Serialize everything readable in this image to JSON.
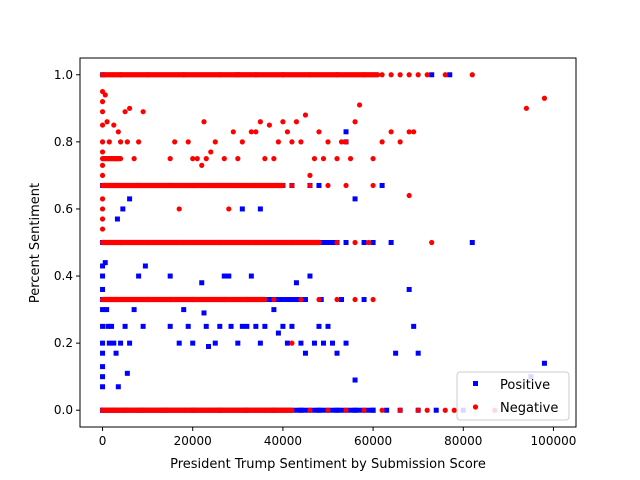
{
  "chart_data": {
    "type": "scatter",
    "title": "",
    "xlabel": "President Trump Sentiment by Submission Score",
    "ylabel": "Percent Sentiment",
    "xlim": [
      -5000,
      105000
    ],
    "ylim": [
      -0.05,
      1.05
    ],
    "xticks": [
      0,
      20000,
      40000,
      60000,
      80000,
      100000
    ],
    "xtick_labels": [
      "0",
      "20000",
      "40000",
      "60000",
      "80000",
      "100000"
    ],
    "yticks": [
      0.0,
      0.2,
      0.4,
      0.6,
      0.8,
      1.0
    ],
    "ytick_labels": [
      "0.0",
      "0.2",
      "0.4",
      "0.6",
      "0.8",
      "1.0"
    ],
    "grid": false,
    "legend_position": "lower-right",
    "series": [
      {
        "name": "Positive",
        "color": "#0000ff",
        "marker": "square",
        "points": [
          [
            0,
            0.0
          ],
          [
            2000,
            0.0
          ],
          [
            5000,
            0.0
          ],
          [
            9000,
            0.0
          ],
          [
            14000,
            0.0
          ],
          [
            20000,
            0.0
          ],
          [
            26000,
            0.0
          ],
          [
            32000,
            0.0
          ],
          [
            38000,
            0.0
          ],
          [
            44000,
            0.0
          ],
          [
            48000,
            0.0
          ],
          [
            52000,
            0.0
          ],
          [
            56000,
            0.0
          ],
          [
            60000,
            0.0
          ],
          [
            63000,
            0.0
          ],
          [
            66000,
            0.0
          ],
          [
            70000,
            0.0
          ],
          [
            74000,
            0.0
          ],
          [
            80000,
            0.0
          ],
          [
            0,
            0.07
          ],
          [
            0,
            0.1
          ],
          [
            0,
            0.13
          ],
          [
            0,
            0.17
          ],
          [
            0,
            0.2
          ],
          [
            0,
            0.25
          ],
          [
            0,
            0.3
          ],
          [
            0,
            0.36
          ],
          [
            0,
            0.4
          ],
          [
            0,
            0.43
          ],
          [
            600,
            0.44
          ],
          [
            900,
            0.3
          ],
          [
            1200,
            0.25
          ],
          [
            1500,
            0.2
          ],
          [
            2000,
            0.25
          ],
          [
            2500,
            0.2
          ],
          [
            3000,
            0.17
          ],
          [
            3500,
            0.07
          ],
          [
            4000,
            0.2
          ],
          [
            5000,
            0.25
          ],
          [
            5500,
            0.11
          ],
          [
            6000,
            0.2
          ],
          [
            7000,
            0.3
          ],
          [
            8000,
            0.4
          ],
          [
            9000,
            0.25
          ],
          [
            3300,
            0.57
          ],
          [
            4500,
            0.6
          ],
          [
            6000,
            0.63
          ],
          [
            9500,
            0.43
          ],
          [
            15000,
            0.25
          ],
          [
            15000,
            0.4
          ],
          [
            17000,
            0.2
          ],
          [
            18000,
            0.3
          ],
          [
            19000,
            0.25
          ],
          [
            20000,
            0.2
          ],
          [
            22000,
            0.38
          ],
          [
            22500,
            0.29
          ],
          [
            23000,
            0.25
          ],
          [
            23500,
            0.19
          ],
          [
            25000,
            0.2
          ],
          [
            26000,
            0.25
          ],
          [
            27000,
            0.4
          ],
          [
            28000,
            0.4
          ],
          [
            28500,
            0.25
          ],
          [
            30000,
            0.2
          ],
          [
            31000,
            0.25
          ],
          [
            32000,
            0.25
          ],
          [
            33000,
            0.4
          ],
          [
            34000,
            0.25
          ],
          [
            35000,
            0.2
          ],
          [
            36000,
            0.25
          ],
          [
            37500,
            0.33
          ],
          [
            38000,
            0.3
          ],
          [
            39000,
            0.23
          ],
          [
            40000,
            0.25
          ],
          [
            41000,
            0.2
          ],
          [
            41500,
            0.33
          ],
          [
            42000,
            0.25
          ],
          [
            43000,
            0.38
          ],
          [
            44000,
            0.2
          ],
          [
            45000,
            0.17
          ],
          [
            46000,
            0.4
          ],
          [
            47000,
            0.2
          ],
          [
            48000,
            0.25
          ],
          [
            48500,
            0.33
          ],
          [
            49000,
            0.2
          ],
          [
            50000,
            0.25
          ],
          [
            51000,
            0.2
          ],
          [
            52000,
            0.17
          ],
          [
            53000,
            0.33
          ],
          [
            54000,
            0.2
          ],
          [
            56000,
            0.09
          ],
          [
            58000,
            0.33
          ],
          [
            65000,
            0.17
          ],
          [
            68000,
            0.36
          ],
          [
            69000,
            0.25
          ],
          [
            70000,
            0.17
          ],
          [
            95000,
            0.1
          ],
          [
            98000,
            0.14
          ],
          [
            12000,
            0.5
          ],
          [
            22000,
            0.5
          ],
          [
            30000,
            0.5
          ],
          [
            38000,
            0.5
          ],
          [
            46000,
            0.5
          ],
          [
            52000,
            0.5
          ],
          [
            54000,
            0.5
          ],
          [
            58000,
            0.5
          ],
          [
            60000,
            0.5
          ],
          [
            64000,
            0.5
          ],
          [
            82000,
            0.5
          ],
          [
            3000,
            0.67
          ],
          [
            8000,
            0.67
          ],
          [
            15000,
            0.67
          ],
          [
            21000,
            0.67
          ],
          [
            27000,
            0.67
          ],
          [
            31000,
            0.6
          ],
          [
            34000,
            0.67
          ],
          [
            35000,
            0.6
          ],
          [
            40000,
            0.67
          ],
          [
            42000,
            0.67
          ],
          [
            46000,
            0.67
          ],
          [
            48000,
            0.67
          ],
          [
            54000,
            0.8
          ],
          [
            54000,
            0.83
          ],
          [
            56000,
            0.63
          ],
          [
            62000,
            0.67
          ],
          [
            0,
            1.0
          ],
          [
            30000,
            1.0
          ],
          [
            73000,
            1.0
          ],
          [
            77000,
            1.0
          ]
        ]
      },
      {
        "name": "Negative",
        "color": "#ff0000",
        "marker": "circle",
        "points": [
          [
            0,
            0.0
          ],
          [
            3000,
            0.0
          ],
          [
            8000,
            0.0
          ],
          [
            13000,
            0.0
          ],
          [
            18000,
            0.0
          ],
          [
            24000,
            0.0
          ],
          [
            30000,
            0.0
          ],
          [
            36000,
            0.0
          ],
          [
            40000,
            0.0
          ],
          [
            46000,
            0.0
          ],
          [
            50000,
            0.0
          ],
          [
            54000,
            0.0
          ],
          [
            58000,
            0.0
          ],
          [
            62000,
            0.0
          ],
          [
            66000,
            0.0
          ],
          [
            70000,
            0.0
          ],
          [
            72000,
            0.0
          ],
          [
            76000,
            0.0
          ],
          [
            78000,
            0.0
          ],
          [
            87000,
            0.0
          ],
          [
            0,
            0.54
          ],
          [
            0,
            0.57
          ],
          [
            0,
            0.6
          ],
          [
            0,
            0.63
          ],
          [
            0,
            0.7
          ],
          [
            0,
            0.73
          ],
          [
            0,
            0.77
          ],
          [
            0,
            0.8
          ],
          [
            0,
            0.85
          ],
          [
            0,
            0.89
          ],
          [
            0,
            0.92
          ],
          [
            0,
            0.95
          ],
          [
            600,
            0.94
          ],
          [
            1000,
            0.86
          ],
          [
            1500,
            0.8
          ],
          [
            2500,
            0.85
          ],
          [
            3000,
            0.75
          ],
          [
            3500,
            0.83
          ],
          [
            4000,
            0.8
          ],
          [
            5000,
            0.89
          ],
          [
            5500,
            0.8
          ],
          [
            6000,
            0.9
          ],
          [
            7000,
            0.75
          ],
          [
            8000,
            0.8
          ],
          [
            9000,
            0.89
          ],
          [
            15000,
            0.75
          ],
          [
            16000,
            0.8
          ],
          [
            17000,
            0.6
          ],
          [
            18000,
            0.67
          ],
          [
            19000,
            0.8
          ],
          [
            20000,
            0.75
          ],
          [
            21000,
            0.75
          ],
          [
            22000,
            0.73
          ],
          [
            22500,
            0.86
          ],
          [
            23000,
            0.75
          ],
          [
            24000,
            0.77
          ],
          [
            25000,
            0.8
          ],
          [
            26000,
            0.67
          ],
          [
            27000,
            0.75
          ],
          [
            28000,
            0.6
          ],
          [
            29000,
            0.83
          ],
          [
            30000,
            0.75
          ],
          [
            31000,
            0.8
          ],
          [
            33000,
            0.83
          ],
          [
            34000,
            0.83
          ],
          [
            35000,
            0.86
          ],
          [
            36000,
            0.75
          ],
          [
            37000,
            0.85
          ],
          [
            38000,
            0.75
          ],
          [
            39000,
            0.8
          ],
          [
            40000,
            0.86
          ],
          [
            41000,
            0.83
          ],
          [
            42000,
            0.8
          ],
          [
            43000,
            0.86
          ],
          [
            44000,
            0.8
          ],
          [
            45000,
            0.88
          ],
          [
            46000,
            0.7
          ],
          [
            47000,
            0.75
          ],
          [
            48000,
            0.83
          ],
          [
            49000,
            0.75
          ],
          [
            50000,
            0.8
          ],
          [
            52000,
            0.75
          ],
          [
            53000,
            0.8
          ],
          [
            54000,
            0.8
          ],
          [
            55000,
            0.75
          ],
          [
            56000,
            0.86
          ],
          [
            57000,
            0.91
          ],
          [
            60000,
            0.75
          ],
          [
            62000,
            0.8
          ],
          [
            64000,
            0.83
          ],
          [
            66000,
            0.8
          ],
          [
            68000,
            0.83
          ],
          [
            69000,
            0.83
          ],
          [
            68000,
            0.64
          ],
          [
            73000,
            0.5
          ],
          [
            94000,
            0.9
          ],
          [
            98000,
            0.93
          ],
          [
            3000,
            0.33
          ],
          [
            10000,
            0.33
          ],
          [
            15000,
            0.33
          ],
          [
            20000,
            0.33
          ],
          [
            27000,
            0.33
          ],
          [
            32000,
            0.33
          ],
          [
            38000,
            0.33
          ],
          [
            42000,
            0.2
          ],
          [
            44000,
            0.33
          ],
          [
            48000,
            0.33
          ],
          [
            52000,
            0.33
          ],
          [
            56000,
            0.33
          ],
          [
            60000,
            0.33
          ],
          [
            4000,
            0.5
          ],
          [
            10000,
            0.5
          ],
          [
            18000,
            0.5
          ],
          [
            26000,
            0.5
          ],
          [
            34000,
            0.5
          ],
          [
            42000,
            0.5
          ],
          [
            48000,
            0.5
          ],
          [
            52000,
            0.5
          ],
          [
            56000,
            0.5
          ],
          [
            59000,
            0.5
          ],
          [
            2000,
            0.67
          ],
          [
            8000,
            0.67
          ],
          [
            14000,
            0.67
          ],
          [
            20000,
            0.67
          ],
          [
            28000,
            0.67
          ],
          [
            36000,
            0.67
          ],
          [
            42000,
            0.67
          ],
          [
            46000,
            0.67
          ],
          [
            50000,
            0.67
          ],
          [
            54000,
            0.67
          ],
          [
            60000,
            0.67
          ],
          [
            0,
            1.0
          ],
          [
            4000,
            1.0
          ],
          [
            10000,
            1.0
          ],
          [
            18000,
            1.0
          ],
          [
            26000,
            1.0
          ],
          [
            34000,
            1.0
          ],
          [
            40000,
            1.0
          ],
          [
            46000,
            1.0
          ],
          [
            52000,
            1.0
          ],
          [
            58000,
            1.0
          ],
          [
            62000,
            1.0
          ],
          [
            64000,
            1.0
          ],
          [
            66000,
            1.0
          ],
          [
            68000,
            1.0
          ],
          [
            70000,
            1.0
          ],
          [
            72000,
            1.0
          ],
          [
            76000,
            1.0
          ],
          [
            82000,
            1.0
          ]
        ],
        "dense_bands": [
          {
            "y": 1.0,
            "x_from": 0,
            "x_to": 61000
          },
          {
            "y": 0.75,
            "x_from": 0,
            "x_to": 4000
          },
          {
            "y": 0.67,
            "x_from": 0,
            "x_to": 40000
          },
          {
            "y": 0.5,
            "x_from": 0,
            "x_to": 48000
          },
          {
            "y": 0.33,
            "x_from": 0,
            "x_to": 36000
          },
          {
            "y": 0.0,
            "x_from": 0,
            "x_to": 42000
          }
        ]
      }
    ],
    "positive_dense_bands": [
      {
        "y": 0.0,
        "x_from": 0,
        "x_to": 60000
      },
      {
        "y": 0.5,
        "x_from": 0,
        "x_to": 51000
      },
      {
        "y": 0.33,
        "x_from": 0,
        "x_to": 45000
      },
      {
        "y": 0.67,
        "x_from": 0,
        "x_to": 30000
      }
    ]
  }
}
